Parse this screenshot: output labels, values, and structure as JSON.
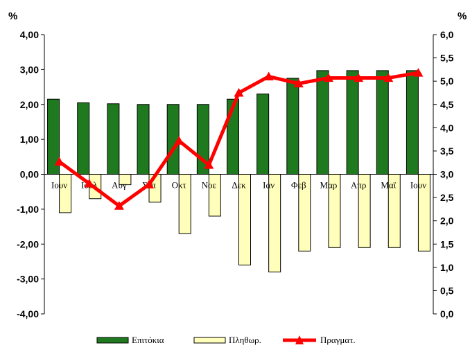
{
  "chart_data": {
    "type": "bar",
    "categories": [
      "Ιουν",
      "Ιουλ",
      "Αυγ",
      "Σεπ",
      "Οκτ",
      "Νοε",
      "Δεκ",
      "Ιαν",
      "Φεβ",
      "Μαρ",
      "Απρ",
      "Μαϊ",
      "Ιουν"
    ],
    "y_left": {
      "unit": "%",
      "ylim": [
        -4.0,
        4.0
      ],
      "ticks": [
        "4,00",
        "3,00",
        "2,00",
        "1,00",
        "0,00",
        "-1,00",
        "-2,00",
        "-3,00",
        "-4,00"
      ]
    },
    "y_right": {
      "unit": "%",
      "ylim": [
        0.0,
        6.0
      ],
      "ticks": [
        "6,0",
        "5,5",
        "5,0",
        "4,5",
        "4,0",
        "3,5",
        "3,0",
        "2,5",
        "2,0",
        "1,5",
        "1,0",
        "0,5",
        "0,0"
      ]
    },
    "series": [
      {
        "name": "Επιτόκια",
        "type": "bar",
        "axis": "left",
        "color": "#1f7a1f",
        "values": [
          2.15,
          2.05,
          2.02,
          2.0,
          2.0,
          2.0,
          2.15,
          2.3,
          2.75,
          2.97,
          2.97,
          2.97,
          2.97
        ]
      },
      {
        "name": "Πληθωρ.",
        "type": "bar",
        "axis": "left",
        "color": "#ffffbb",
        "values": [
          -1.1,
          -0.7,
          -0.3,
          -0.8,
          -1.7,
          -1.2,
          -2.6,
          -2.8,
          -2.2,
          -2.1,
          -2.1,
          -2.1,
          -2.2
        ]
      },
      {
        "name": "Πραγματ.",
        "type": "line",
        "axis": "right",
        "color": "#ff0000",
        "values": [
          3.27,
          2.8,
          2.32,
          2.78,
          3.72,
          3.2,
          4.75,
          5.1,
          4.95,
          5.07,
          5.07,
          5.07,
          5.18
        ]
      }
    ],
    "legend_position": "bottom",
    "grid": false
  }
}
